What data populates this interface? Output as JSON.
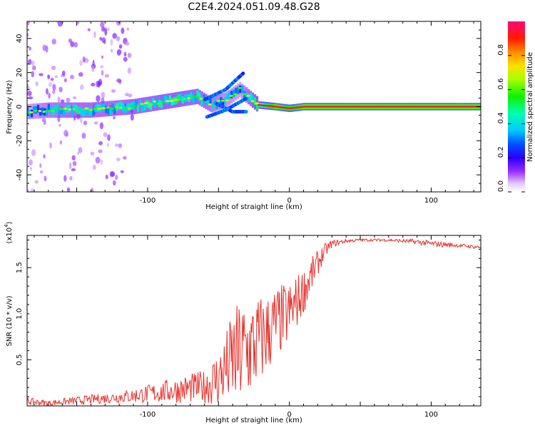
{
  "title": "C2E4.2024.051.09.48.G28",
  "colors": {
    "snr_line": "#e8302a",
    "axis": "#000000"
  },
  "chart_data": [
    {
      "type": "heatmap",
      "xlabel": "Height of straight line (km)",
      "ylabel": "Frequency (Hz)",
      "xlim": [
        -185,
        135
      ],
      "ylim": [
        -50,
        50
      ],
      "x_ticks": [
        -100,
        0,
        100
      ],
      "y_ticks": [
        -40,
        -20,
        0,
        20,
        40
      ],
      "colorbar": {
        "label": "Normalized spectral amplitude",
        "range": [
          0.0,
          1.0
        ],
        "ticks": [
          0.0,
          0.2,
          0.4,
          0.6,
          0.8
        ],
        "tick_labels": [
          "0.0",
          "0.2",
          "0.4",
          "0.6",
          "0.8"
        ],
        "colormap": "rainbow"
      },
      "ridge": [
        {
          "x": -185,
          "y": -3,
          "v": 0.35
        },
        {
          "x": -170,
          "y": -2,
          "v": 0.45
        },
        {
          "x": -155,
          "y": -2,
          "v": 0.5
        },
        {
          "x": -140,
          "y": -2,
          "v": 0.5
        },
        {
          "x": -125,
          "y": -1,
          "v": 0.5
        },
        {
          "x": -110,
          "y": 0,
          "v": 0.55
        },
        {
          "x": -95,
          "y": 2,
          "v": 0.55
        },
        {
          "x": -80,
          "y": 4,
          "v": 0.6
        },
        {
          "x": -65,
          "y": 6,
          "v": 0.55
        },
        {
          "x": -55,
          "y": 1,
          "v": 0.45
        },
        {
          "x": -45,
          "y": 4,
          "v": 0.4
        },
        {
          "x": -35,
          "y": 10,
          "v": 0.35
        },
        {
          "x": -22,
          "y": 1,
          "v": 0.7
        },
        {
          "x": -10,
          "y": 0,
          "v": 1.0
        },
        {
          "x": 0,
          "y": -1,
          "v": 0.9
        },
        {
          "x": 10,
          "y": 0,
          "v": 1.0
        },
        {
          "x": 40,
          "y": 0,
          "v": 1.0
        },
        {
          "x": 80,
          "y": 0,
          "v": 1.0
        },
        {
          "x": 135,
          "y": 0,
          "v": 1.0
        }
      ]
    },
    {
      "type": "line",
      "xlabel": "Height of straight line (km)",
      "ylabel": "SNR (10 * v/v)",
      "multiplier": "(x10",
      "multiplier_exp": "4",
      "multiplier_close": ")",
      "xlim": [
        -185,
        135
      ],
      "ylim": [
        0,
        1.85
      ],
      "x_ticks": [
        -100,
        0,
        100
      ],
      "y_ticks": [
        0.5,
        1.0,
        1.5
      ],
      "y_tick_labels": [
        "0.5",
        "1.0",
        "1.5"
      ],
      "series": [
        {
          "x": [
            -185,
            -170,
            -155,
            -140,
            -125,
            -110,
            -100,
            -90,
            -80,
            -70,
            -60,
            -50,
            -45,
            -40,
            -35,
            -30,
            -25,
            -20,
            -15,
            -10,
            -5,
            0,
            5,
            10,
            15,
            20,
            25,
            30,
            40,
            50,
            60,
            70,
            80,
            90,
            100,
            110,
            120,
            135
          ],
          "y": [
            0.05,
            0.03,
            0.05,
            0.07,
            0.09,
            0.11,
            0.13,
            0.15,
            0.17,
            0.19,
            0.21,
            0.3,
            0.4,
            0.5,
            0.55,
            0.6,
            0.65,
            0.72,
            0.8,
            0.88,
            0.95,
            1.0,
            1.12,
            1.25,
            1.4,
            1.55,
            1.68,
            1.76,
            1.79,
            1.8,
            1.8,
            1.8,
            1.79,
            1.78,
            1.76,
            1.75,
            1.74,
            1.72
          ],
          "noise": [
            0.04,
            0.03,
            0.04,
            0.05,
            0.06,
            0.08,
            0.1,
            0.12,
            0.14,
            0.16,
            0.18,
            0.32,
            0.4,
            0.55,
            0.6,
            0.6,
            0.55,
            0.5,
            0.45,
            0.42,
            0.38,
            0.35,
            0.3,
            0.25,
            0.2,
            0.14,
            0.08,
            0.04,
            0.02,
            0.015,
            0.015,
            0.015,
            0.02,
            0.03,
            0.03,
            0.03,
            0.02,
            0.02
          ]
        }
      ]
    }
  ]
}
